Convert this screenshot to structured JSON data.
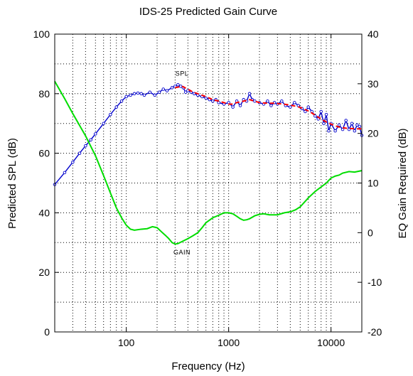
{
  "chart_data": {
    "type": "line",
    "title": "IDS-25 Predicted Gain Curve",
    "xlabel": "Frequency (Hz)",
    "ylabel": "Predicted SPL (dB)",
    "y2label": "EQ Gain Required (dB)",
    "xscale": "log",
    "xlim": [
      20,
      20000
    ],
    "ylim": [
      0,
      100
    ],
    "y2lim": [
      -20,
      40
    ],
    "x_ticks": [
      "100",
      "1000",
      "10000"
    ],
    "x_tick_values": [
      100,
      1000,
      10000
    ],
    "y_ticks": [
      "0",
      "20",
      "40",
      "60",
      "80",
      "100"
    ],
    "y_tick_values": [
      0,
      20,
      40,
      60,
      80,
      100
    ],
    "y2_ticks": [
      "-20",
      "-10",
      "0",
      "10",
      "20",
      "30",
      "40"
    ],
    "y2_tick_values": [
      -20,
      -10,
      0,
      10,
      20,
      30,
      40
    ],
    "grid": "dotted",
    "annotations": [
      {
        "text": "SPL",
        "x": 350,
        "y": 86,
        "axis": "left"
      },
      {
        "text": "GAIN",
        "x": 350,
        "y": -4.4,
        "axis": "right"
      }
    ],
    "series": [
      {
        "color": "#0000cc",
        "marker": "circle",
        "axis": "left",
        "x": [
          20,
          25,
          30,
          35,
          40,
          45,
          50,
          60,
          70,
          80,
          90,
          100,
          110,
          120,
          130,
          140,
          150,
          170,
          190,
          210,
          230,
          250,
          280,
          300,
          320,
          340,
          360,
          380,
          400,
          430,
          460,
          500,
          550,
          600,
          650,
          700,
          750,
          800,
          900,
          1000,
          1100,
          1200,
          1300,
          1400,
          1500,
          1600,
          1700,
          1800,
          2000,
          2200,
          2400,
          2600,
          2800,
          3000,
          3300,
          3600,
          4000,
          4400,
          4800,
          5200,
          5600,
          6000,
          6500,
          7000,
          7500,
          8000,
          8500,
          9000,
          9500,
          10000,
          11000,
          12000,
          13000,
          14000,
          15000,
          16000,
          17000,
          18000,
          19000,
          20000
        ],
        "y": [
          49.5,
          53.5,
          57,
          60,
          62.5,
          64.5,
          66.5,
          70,
          73,
          75.5,
          77.5,
          79,
          79.5,
          80,
          80.2,
          80,
          79.5,
          80.5,
          79.5,
          80.5,
          81.5,
          81,
          82,
          82.5,
          83,
          82.5,
          82,
          80.5,
          81,
          80.5,
          80,
          79.5,
          79,
          78.5,
          78,
          77.5,
          78,
          77,
          76.5,
          77,
          75.5,
          77.5,
          76,
          78,
          77.5,
          80,
          78,
          77.5,
          77,
          76.5,
          77.5,
          76,
          77,
          76.5,
          77.5,
          76,
          75.5,
          77,
          76,
          75,
          74,
          75.5,
          74,
          72.5,
          71.5,
          74,
          70,
          73,
          67.5,
          70,
          67.5,
          69.5,
          68,
          71,
          68,
          70,
          67.5,
          69.5,
          69,
          66
        ]
      },
      {
        "color": "#ff0000",
        "dash": "dashed",
        "axis": "left",
        "x": [
          300,
          350,
          400,
          450,
          500,
          550,
          600,
          650,
          700,
          800,
          900,
          1000,
          1100,
          1200,
          1400,
          1600,
          1800,
          2000,
          2400,
          2800,
          3200,
          3600,
          4000,
          4500,
          5000,
          5500,
          6000,
          6500,
          7000,
          8000,
          9000,
          10000,
          11000,
          12000,
          13000,
          14000,
          15000,
          16000,
          17000,
          18000,
          19000,
          20000
        ],
        "y": [
          82,
          82.5,
          81.5,
          80.5,
          80,
          79.5,
          79,
          78.5,
          78,
          77.5,
          77,
          76.5,
          76.5,
          77,
          77.5,
          78,
          77.5,
          77,
          76.8,
          76.8,
          76.6,
          76.4,
          76.2,
          75.8,
          75.4,
          74.8,
          74.2,
          73.5,
          72.8,
          71.5,
          70.5,
          69.8,
          69.2,
          68.8,
          68.6,
          68.4,
          68.3,
          68.3,
          68.2,
          68.2,
          68.2,
          68.2
        ]
      },
      {
        "color": "#00dd00",
        "axis": "right",
        "x": [
          20,
          25,
          30,
          40,
          50,
          60,
          70,
          80,
          90,
          100,
          110,
          120,
          140,
          160,
          180,
          200,
          220,
          240,
          260,
          280,
          300,
          320,
          350,
          400,
          450,
          500,
          550,
          600,
          700,
          800,
          900,
          1000,
          1100,
          1200,
          1300,
          1400,
          1500,
          1600,
          1800,
          2000,
          2200,
          2500,
          3000,
          3500,
          4000,
          4500,
          5000,
          6000,
          7000,
          8000,
          9000,
          10000,
          11000,
          12000,
          13000,
          15000,
          17000,
          20000
        ],
        "y": [
          30.5,
          27,
          24,
          19.5,
          15.5,
          11.5,
          8,
          5,
          3,
          1.5,
          0.7,
          0.5,
          0.7,
          0.8,
          1.2,
          1,
          0.2,
          -0.5,
          -1.2,
          -2,
          -2.3,
          -2.2,
          -1.8,
          -1.2,
          -0.6,
          0,
          1,
          2,
          3,
          3.5,
          4,
          4,
          3.8,
          3.3,
          2.8,
          2.5,
          2.6,
          2.8,
          3.4,
          3.7,
          3.8,
          3.6,
          3.6,
          4,
          4.2,
          4.6,
          5.2,
          7,
          8.3,
          9.2,
          10,
          11,
          11.4,
          11.6,
          12,
          12.3,
          12.2,
          12.5
        ]
      }
    ]
  }
}
